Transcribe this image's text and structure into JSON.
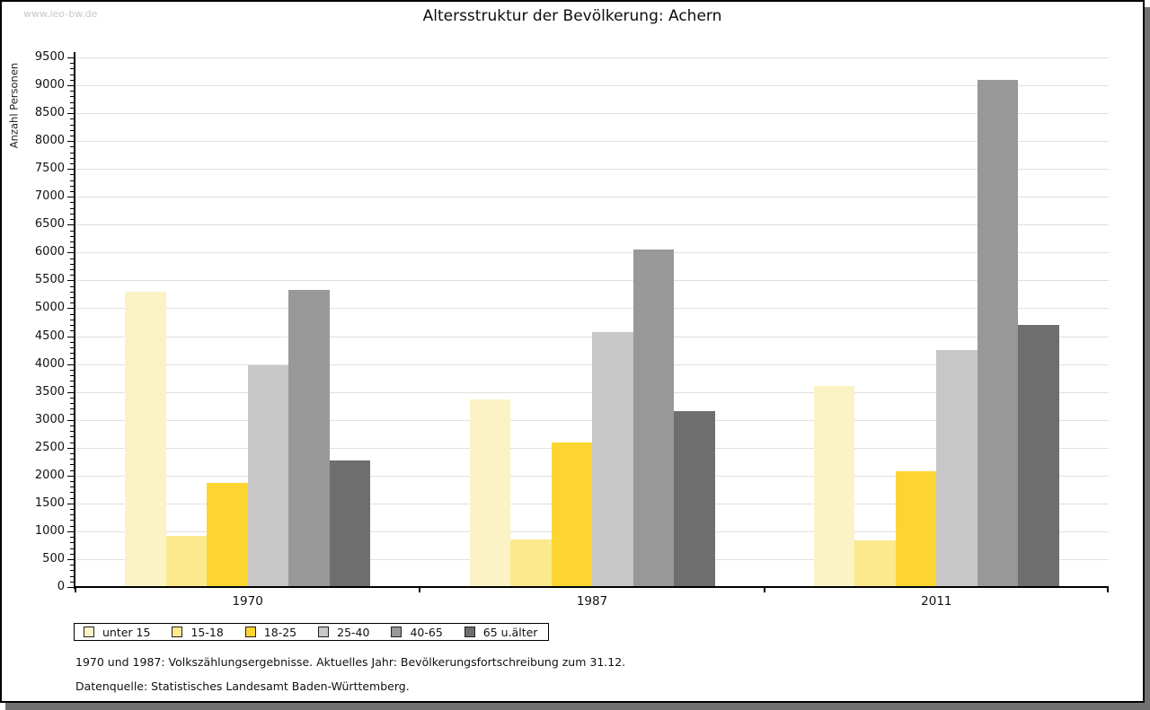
{
  "watermark": "www.leo-bw.de",
  "title": "Altersstruktur der Bevölkerung: Achern",
  "footnotes": [
    "1970 und 1987: Volkszählungsergebnisse. Aktuelles Jahr: Bevölkerungsfortschreibung zum 31.12.",
    "Datenquelle: Statistisches Landesamt Baden-Württemberg."
  ],
  "chart_data": {
    "type": "bar",
    "title": "Altersstruktur der Bevölkerung: Achern",
    "xlabel": "",
    "ylabel": "Anzahl Personen",
    "categories": [
      "1970",
      "1987",
      "2011"
    ],
    "series": [
      {
        "name": "unter 15",
        "color": "#fbf3c5",
        "values": [
          5300,
          3360,
          3600
        ]
      },
      {
        "name": "15-18",
        "color": "#fce98d",
        "values": [
          920,
          850,
          840
        ]
      },
      {
        "name": "18-25",
        "color": "#fcd532",
        "values": [
          1870,
          2590,
          2070
        ]
      },
      {
        "name": "25-40",
        "color": "#c7c7c7",
        "values": [
          3980,
          4570,
          4250
        ]
      },
      {
        "name": "40-65",
        "color": "#989898",
        "values": [
          5330,
          6060,
          9090
        ]
      },
      {
        "name": "65 u.älter",
        "color": "#6e6e6e",
        "values": [
          2270,
          3150,
          4700
        ]
      }
    ],
    "ylim": [
      0,
      9500
    ],
    "y_major_step": 500,
    "y_minor_step": 100,
    "grid": true,
    "legend_position": "bottom-left"
  }
}
